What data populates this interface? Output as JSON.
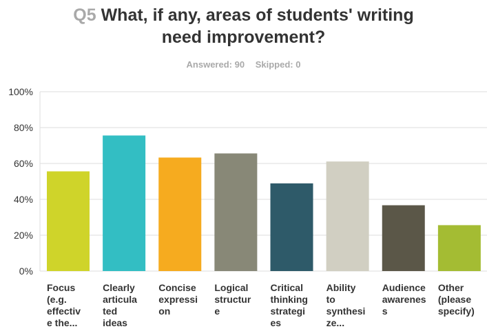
{
  "header": {
    "question_number": "Q5",
    "question_line1": "What, if any, areas of students' writing",
    "question_line2": "need improvement?",
    "answered": "Answered: 90",
    "skipped": "Skipped: 0"
  },
  "chart_data": {
    "type": "bar",
    "categories": [
      "Focus (e.g. effective the...",
      "Clearly articulated ideas",
      "Concise expression",
      "Logical structure",
      "Critical thinking strategies",
      "Ability to synthesize...",
      "Audience awareness",
      "Other (please specify)"
    ],
    "category_label_lines": [
      [
        "Focus",
        "(e.g.",
        "effectiv",
        "e the..."
      ],
      [
        "Clearly",
        "articula",
        "ted",
        "ideas"
      ],
      [
        "Concise",
        "expressi",
        "on"
      ],
      [
        "Logical",
        "structur",
        "e"
      ],
      [
        "Critical",
        "thinking",
        "strategi",
        "es"
      ],
      [
        "Ability",
        "to",
        "synthesi",
        "ze..."
      ],
      [
        "Audience",
        "awarenes",
        "s"
      ],
      [
        "Other",
        "(please",
        "specify)"
      ]
    ],
    "values": [
      55.6,
      75.6,
      63.3,
      65.6,
      48.9,
      61.1,
      36.7,
      25.6
    ],
    "colors": [
      "#cfd42a",
      "#33bec3",
      "#f6ab1f",
      "#888877",
      "#2e5a69",
      "#d1cfc2",
      "#5b5748",
      "#a4bc33"
    ],
    "ylim": [
      0,
      100
    ],
    "yticks": [
      "0%",
      "20%",
      "40%",
      "60%",
      "80%",
      "100%"
    ],
    "grid": true
  }
}
